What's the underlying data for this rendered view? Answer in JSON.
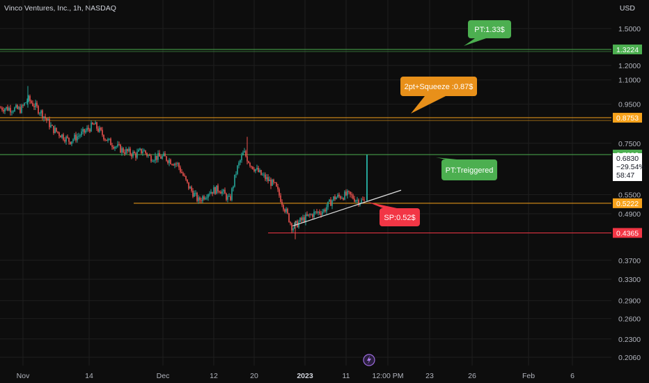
{
  "header": {
    "title": "Vinco Ventures, Inc., 1h, NASDAQ",
    "currency": "USD"
  },
  "chart_data": {
    "type": "candlestick",
    "y_scale": "log",
    "y_ticks": [
      "1.5000",
      "1.2000",
      "1.1000",
      "0.9500",
      "0.7500",
      "0.5500",
      "0.4900",
      "0.3700",
      "0.3300",
      "0.2900",
      "0.2600",
      "0.2300",
      "0.2060"
    ],
    "x_ticks": [
      {
        "label": "Nov",
        "bold": false
      },
      {
        "label": "14",
        "bold": false
      },
      {
        "label": "Dec",
        "bold": false
      },
      {
        "label": "12",
        "bold": false
      },
      {
        "label": "20",
        "bold": false
      },
      {
        "label": "2023",
        "bold": true
      },
      {
        "label": "11",
        "bold": false
      },
      {
        "label": "12:00 PM",
        "bold": false
      },
      {
        "label": "23",
        "bold": false
      },
      {
        "label": "26",
        "bold": false
      },
      {
        "label": "Feb",
        "bold": false
      },
      {
        "label": "6",
        "bold": false
      }
    ],
    "levels": [
      {
        "label": "1.3224",
        "value": 1.3224,
        "color": "#4caf50"
      },
      {
        "label": "0.8753",
        "value": 0.8753,
        "color": "#f7a21b"
      },
      {
        "label": "0.7006",
        "value": 0.7006,
        "color": "#4caf50"
      },
      {
        "label": "0.5222",
        "value": 0.5222,
        "color": "#f7a21b"
      },
      {
        "label": "0.4365",
        "value": 0.4365,
        "color": "#f23645"
      }
    ],
    "last_price": {
      "price": "0.6830",
      "change": "−29.54%",
      "countdown": "58:47"
    },
    "annotations": [
      {
        "text": "PT:1.33$",
        "color": "#4caf50"
      },
      {
        "text": "2pt+Squeeze :0.87$",
        "color": "#e8901a"
      },
      {
        "text": "PT:Treiggered",
        "color": "#4caf50"
      },
      {
        "text": "SP:0.52$",
        "color": "#f23645"
      }
    ],
    "trendline": {
      "color": "#e0e0e0"
    },
    "colors": {
      "up": "#26a69a",
      "down": "#ef5350",
      "background": "#0d0d0d",
      "grid": "#1e1e1e"
    }
  }
}
